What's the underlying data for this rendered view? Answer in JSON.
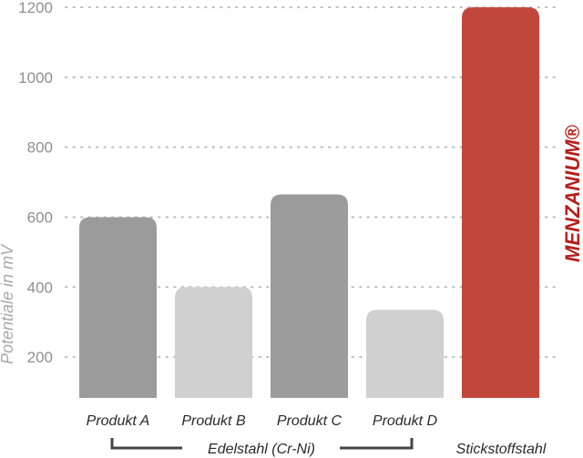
{
  "chart_data": {
    "type": "bar",
    "title": "",
    "xlabel": "",
    "ylabel": "Potentiale in mV",
    "ylim": [
      83,
      1200
    ],
    "yticks": [
      200,
      400,
      600,
      800,
      1000,
      1200
    ],
    "grid": true,
    "categories": [
      "Produkt A",
      "Produkt B",
      "Produkt C",
      "Produkt D",
      ""
    ],
    "values": [
      600,
      400,
      665,
      335,
      1200
    ],
    "bar_colors": [
      "#9b9b9b",
      "#d0d0d0",
      "#9b9b9b",
      "#d0d0d0",
      "#c1473b"
    ],
    "groups": [
      {
        "label": "Edelstahl (Cr-Ni)",
        "members": [
          "Produkt A",
          "Produkt B",
          "Produkt C",
          "Produkt D"
        ]
      },
      {
        "label": "Stickstoffstahl",
        "members": [
          ""
        ]
      }
    ],
    "brand_label": "MENZANIUM®"
  }
}
